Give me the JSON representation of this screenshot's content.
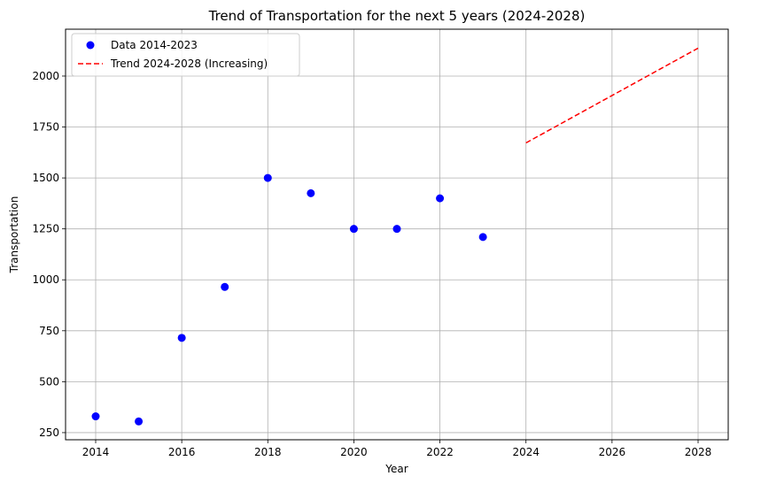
{
  "chart_data": {
    "type": "scatter",
    "title": "Trend of Transportation for the next 5 years (2024-2028)",
    "xlabel": "Year",
    "ylabel": "Transportation",
    "xlim": [
      2013.3,
      2028.7
    ],
    "ylim": [
      215,
      2230
    ],
    "x_ticks": [
      2014,
      2016,
      2018,
      2020,
      2022,
      2024,
      2026,
      2028
    ],
    "y_ticks": [
      250,
      500,
      750,
      1000,
      1250,
      1500,
      1750,
      2000
    ],
    "grid": true,
    "legend_position": "upper-left",
    "series": [
      {
        "name": "Data 2014-2023",
        "kind": "scatter",
        "color": "#0000ff",
        "x": [
          2014,
          2015,
          2016,
          2017,
          2018,
          2019,
          2020,
          2021,
          2022,
          2023
        ],
        "y": [
          330,
          305,
          715,
          965,
          1500,
          1425,
          1250,
          1250,
          1400,
          1210
        ]
      },
      {
        "name": "Trend 2024-2028 (Increasing)",
        "kind": "line",
        "style": "dashed",
        "color": "#ff0000",
        "x": [
          2024,
          2028
        ],
        "y": [
          1672,
          2137
        ]
      }
    ]
  }
}
